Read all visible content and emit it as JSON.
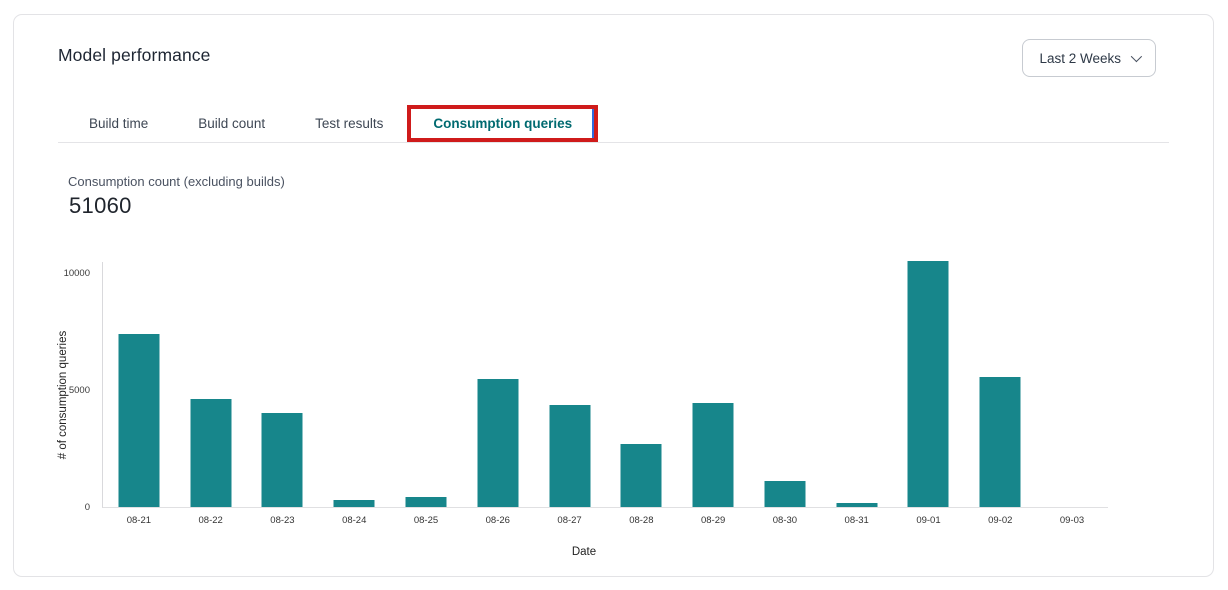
{
  "header": {
    "title": "Model performance",
    "time_range": {
      "value": "Last 2 Weeks"
    }
  },
  "tabs": [
    {
      "label": "Build time",
      "active": false
    },
    {
      "label": "Build count",
      "active": false
    },
    {
      "label": "Test results",
      "active": false
    },
    {
      "label": "Consumption queries",
      "active": true,
      "annotated": "red-box-with-blue-inner-line"
    }
  ],
  "stat": {
    "label": "Consumption count (excluding builds)",
    "value": "51060"
  },
  "colors": {
    "bar": "#17868b",
    "active_tab_text": "#006a70",
    "annotation_red": "#cf1b1b",
    "annotation_blue": "#2f6bdf",
    "card_border": "#e3e3e6"
  },
  "chart_data": {
    "type": "bar",
    "title": "",
    "categories": [
      "08-21",
      "08-22",
      "08-23",
      "08-24",
      "08-25",
      "08-26",
      "08-27",
      "08-28",
      "08-29",
      "08-30",
      "08-31",
      "09-01",
      "09-02",
      "09-03"
    ],
    "values": [
      7400,
      4600,
      4030,
      310,
      420,
      5480,
      4360,
      2680,
      4440,
      1120,
      190,
      10480,
      5550,
      0
    ],
    "xlabel": "Date",
    "ylabel": "# of consumption queries",
    "ylim": [
      0,
      10500
    ],
    "yticks": [
      0,
      5000,
      10000
    ],
    "grid": false,
    "legend_position": "none",
    "bar_color": "#17868b"
  }
}
